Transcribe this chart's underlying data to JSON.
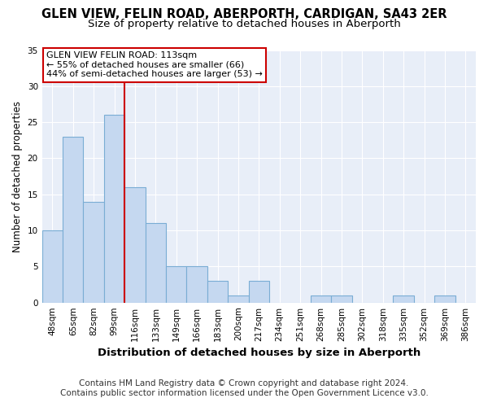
{
  "title": "GLEN VIEW, FELIN ROAD, ABERPORTH, CARDIGAN, SA43 2ER",
  "subtitle": "Size of property relative to detached houses in Aberporth",
  "xlabel": "Distribution of detached houses by size in Aberporth",
  "ylabel": "Number of detached properties",
  "bar_labels": [
    "48sqm",
    "65sqm",
    "82sqm",
    "99sqm",
    "116sqm",
    "133sqm",
    "149sqm",
    "166sqm",
    "183sqm",
    "200sqm",
    "217sqm",
    "234sqm",
    "251sqm",
    "268sqm",
    "285sqm",
    "302sqm",
    "318sqm",
    "335sqm",
    "352sqm",
    "369sqm",
    "386sqm"
  ],
  "bar_values": [
    10,
    23,
    14,
    26,
    16,
    11,
    5,
    5,
    3,
    1,
    3,
    0,
    0,
    1,
    1,
    0,
    0,
    1,
    0,
    1,
    0
  ],
  "bar_color": "#c5d8f0",
  "bar_edgecolor": "#7aadd4",
  "vline_color": "#cc0000",
  "ylim": [
    0,
    35
  ],
  "yticks": [
    0,
    5,
    10,
    15,
    20,
    25,
    30,
    35
  ],
  "annotation_title": "GLEN VIEW FELIN ROAD: 113sqm",
  "annotation_line1": "← 55% of detached houses are smaller (66)",
  "annotation_line2": "44% of semi-detached houses are larger (53) →",
  "annotation_box_facecolor": "#ffffff",
  "annotation_box_edgecolor": "#cc0000",
  "footer1": "Contains HM Land Registry data © Crown copyright and database right 2024.",
  "footer2": "Contains public sector information licensed under the Open Government Licence v3.0.",
  "plot_bg_color": "#e8eef8",
  "fig_bg_color": "#ffffff",
  "title_fontsize": 10.5,
  "subtitle_fontsize": 9.5,
  "xlabel_fontsize": 9.5,
  "ylabel_fontsize": 8.5,
  "tick_fontsize": 7.5,
  "annotation_fontsize": 8,
  "footer_fontsize": 7.5,
  "grid_color": "#ffffff"
}
